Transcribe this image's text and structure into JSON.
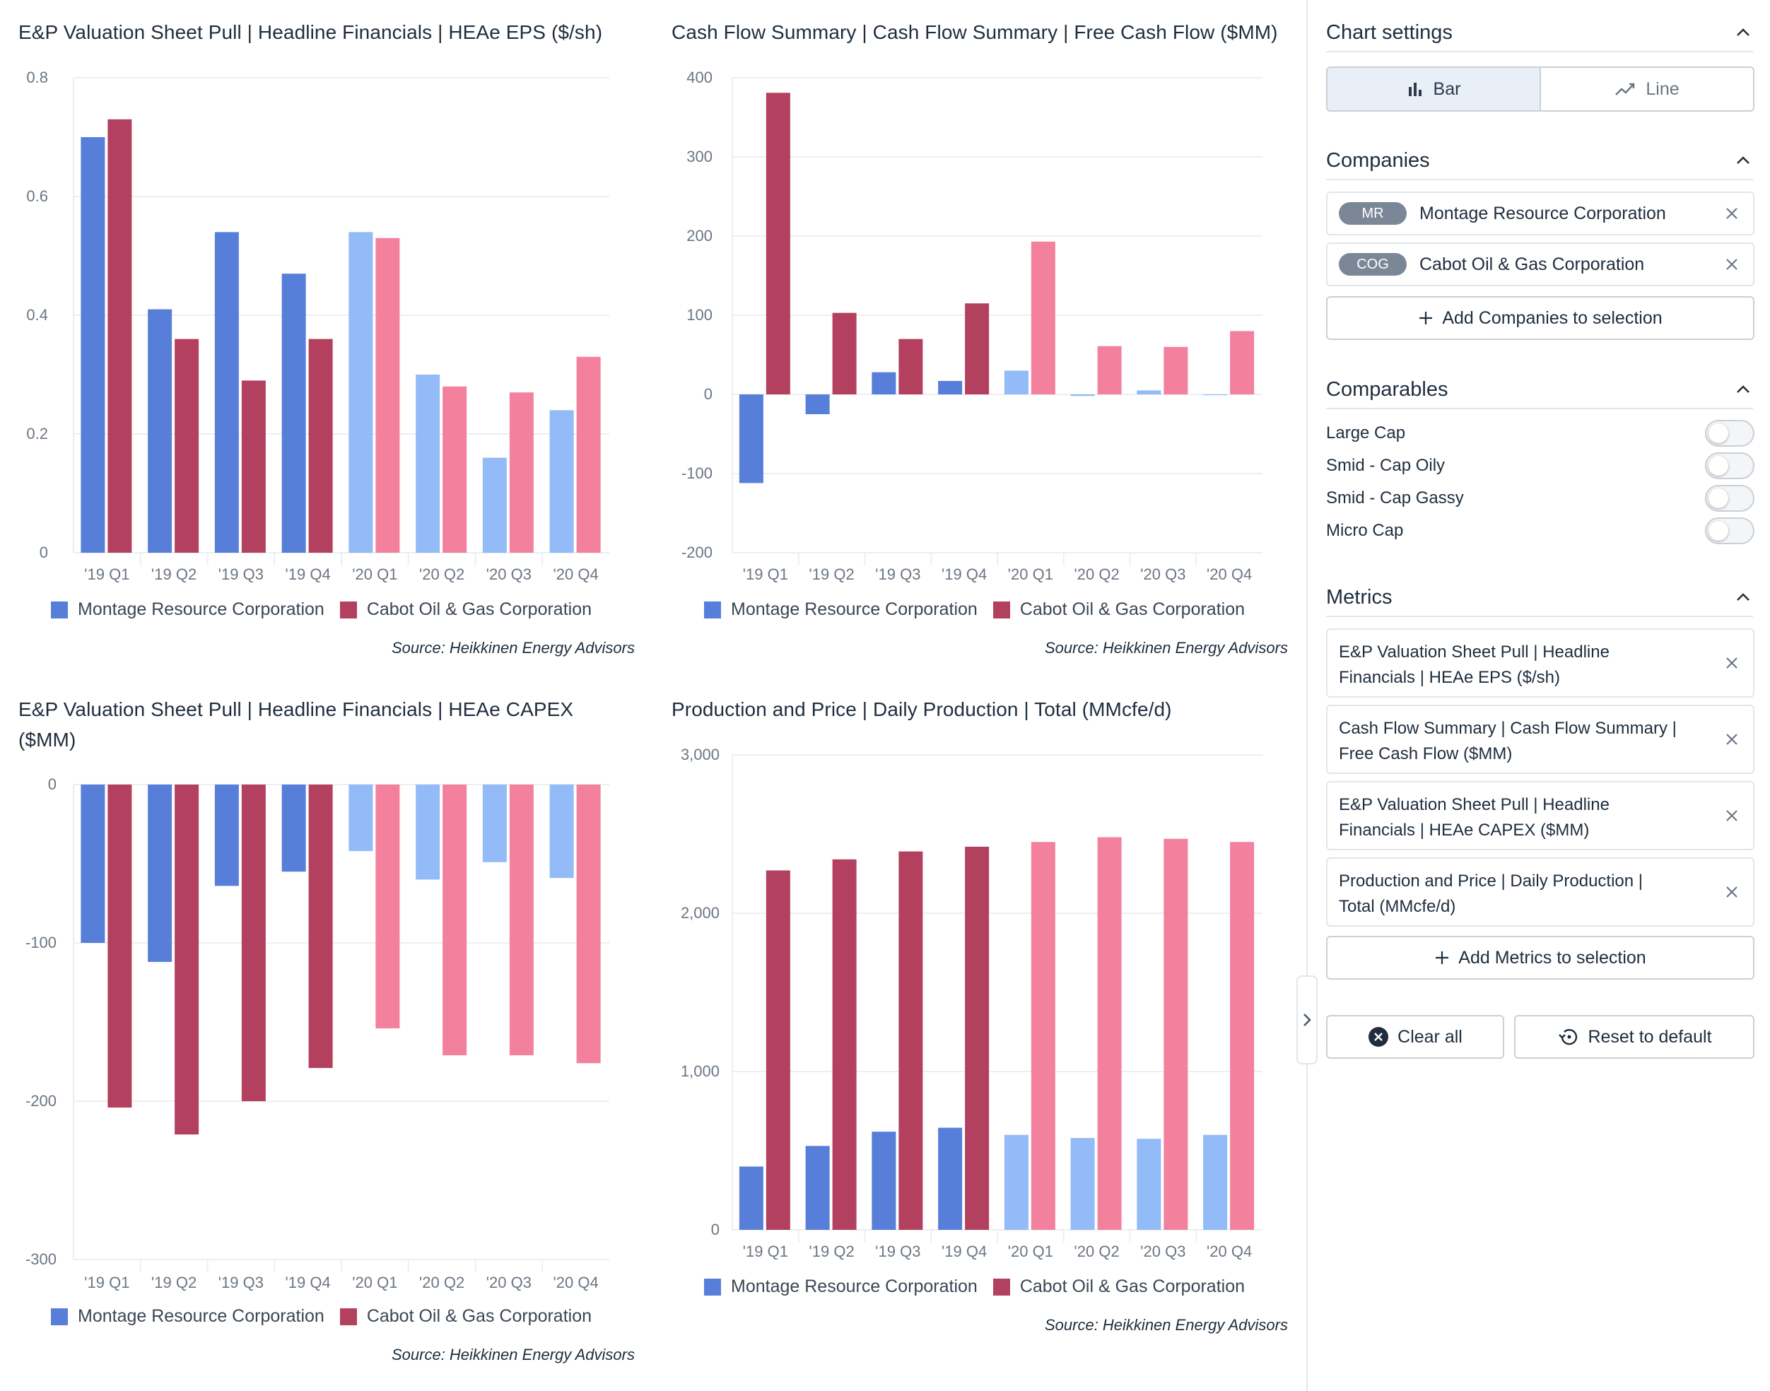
{
  "colors": {
    "mr_2019": "#577fd9",
    "cog_2019": "#b3405e",
    "mr_2020": "#92bbf7",
    "cog_2020": "#f3819e",
    "legend_mr": "#577fd9",
    "legend_cog": "#b3405e",
    "grid": "#eceff2"
  },
  "legend": {
    "mr": "Montage Resource Corporation",
    "cog": "Cabot Oil & Gas Corporation"
  },
  "source_text": "Source: Heikkinen Energy Advisors",
  "chart_data": [
    {
      "type": "bar",
      "title": "E&P Valuation Sheet Pull | Headline Financials | HEAe EPS ($/sh)",
      "categories": [
        "'19 Q1",
        "'19 Q2",
        "'19 Q3",
        "'19 Q4",
        "'20 Q1",
        "'20 Q2",
        "'20 Q3",
        "'20 Q4"
      ],
      "series": [
        {
          "name": "Montage Resource Corporation",
          "values": [
            0.7,
            0.41,
            0.54,
            0.47,
            0.54,
            0.3,
            0.16,
            0.24
          ]
        },
        {
          "name": "Cabot Oil & Gas Corporation",
          "values": [
            0.73,
            0.36,
            0.29,
            0.36,
            0.53,
            0.28,
            0.27,
            0.33
          ]
        }
      ],
      "yticks": [
        "0.8",
        "0.6",
        "0.4",
        "0.2",
        "0"
      ],
      "ytick_values": [
        0.8,
        0.6,
        0.4,
        0.2,
        0
      ],
      "ylim": [
        0,
        0.8
      ]
    },
    {
      "type": "bar",
      "title": "Cash Flow Summary | Cash Flow Summary | Free Cash Flow ($MM)",
      "categories": [
        "'19 Q1",
        "'19 Q2",
        "'19 Q3",
        "'19 Q4",
        "'20 Q1",
        "'20 Q2",
        "'20 Q3",
        "'20 Q4"
      ],
      "series": [
        {
          "name": "Montage Resource Corporation",
          "values": [
            -112,
            -25,
            28,
            17,
            30,
            -2,
            5,
            -1
          ]
        },
        {
          "name": "Cabot Oil & Gas Corporation",
          "values": [
            381,
            103,
            70,
            115,
            193,
            61,
            60,
            80
          ]
        }
      ],
      "yticks": [
        "400",
        "300",
        "200",
        "100",
        "0",
        "-100",
        "-200"
      ],
      "ytick_values": [
        400,
        300,
        200,
        100,
        0,
        -100,
        -200
      ],
      "ylim": [
        -200,
        400
      ]
    },
    {
      "type": "bar",
      "title": "E&P Valuation Sheet Pull | Headline Financials | HEAe CAPEX ($MM)",
      "categories": [
        "'19 Q1",
        "'19 Q2",
        "'19 Q3",
        "'19 Q4",
        "'20 Q1",
        "'20 Q2",
        "'20 Q3",
        "'20 Q4"
      ],
      "series": [
        {
          "name": "Montage Resource Corporation",
          "values": [
            -100,
            -112,
            -64,
            -55,
            -42,
            -60,
            -49,
            -59
          ]
        },
        {
          "name": "Cabot Oil & Gas Corporation",
          "values": [
            -204,
            -221,
            -200,
            -179,
            -154,
            -171,
            -171,
            -176
          ]
        }
      ],
      "yticks": [
        "0",
        "-100",
        "-200",
        "-300"
      ],
      "ytick_values": [
        0,
        -100,
        -200,
        -300
      ],
      "ylim": [
        -300,
        0
      ]
    },
    {
      "type": "bar",
      "title": "Production and Price | Daily Production | Total (MMcfe/d)",
      "categories": [
        "'19 Q1",
        "'19 Q2",
        "'19 Q3",
        "'19 Q4",
        "'20 Q1",
        "'20 Q2",
        "'20 Q3",
        "'20 Q4"
      ],
      "series": [
        {
          "name": "Montage Resource Corporation",
          "values": [
            400,
            530,
            620,
            645,
            600,
            580,
            575,
            600
          ]
        },
        {
          "name": "Cabot Oil & Gas Corporation",
          "values": [
            2270,
            2340,
            2390,
            2420,
            2450,
            2480,
            2470,
            2450
          ]
        }
      ],
      "yticks": [
        "3,000",
        "2,000",
        "1,000",
        "0"
      ],
      "ytick_values": [
        3000,
        2000,
        1000,
        0
      ],
      "ylim": [
        0,
        3000
      ]
    }
  ],
  "sidebar": {
    "chart_settings": {
      "heading": "Chart settings",
      "bar_label": "Bar",
      "line_label": "Line"
    },
    "companies": {
      "heading": "Companies",
      "items": [
        {
          "ticker": "MR",
          "name": "Montage Resource Corporation"
        },
        {
          "ticker": "COG",
          "name": "Cabot Oil & Gas Corporation"
        }
      ],
      "add_label": "Add Companies to selection"
    },
    "comparables": {
      "heading": "Comparables",
      "items": [
        {
          "label": "Large Cap",
          "on": false
        },
        {
          "label": "Smid - Cap Oily",
          "on": false
        },
        {
          "label": "Smid - Cap Gassy",
          "on": false
        },
        {
          "label": "Micro Cap",
          "on": false
        }
      ]
    },
    "metrics": {
      "heading": "Metrics",
      "items": [
        {
          "line1": "E&P Valuation Sheet Pull | Headline",
          "line2": "Financials | HEAe EPS ($/sh)"
        },
        {
          "line1": "Cash Flow Summary | Cash Flow Summary |",
          "line2": "Free Cash Flow ($MM)"
        },
        {
          "line1": "E&P Valuation Sheet Pull | Headline",
          "line2": "Financials | HEAe CAPEX ($MM)"
        },
        {
          "line1": "Production and Price | Daily Production |",
          "line2": "Total (MMcfe/d)"
        }
      ],
      "add_label": "Add Metrics to selection"
    },
    "clear_label": "Clear all",
    "reset_label": "Reset to default"
  }
}
